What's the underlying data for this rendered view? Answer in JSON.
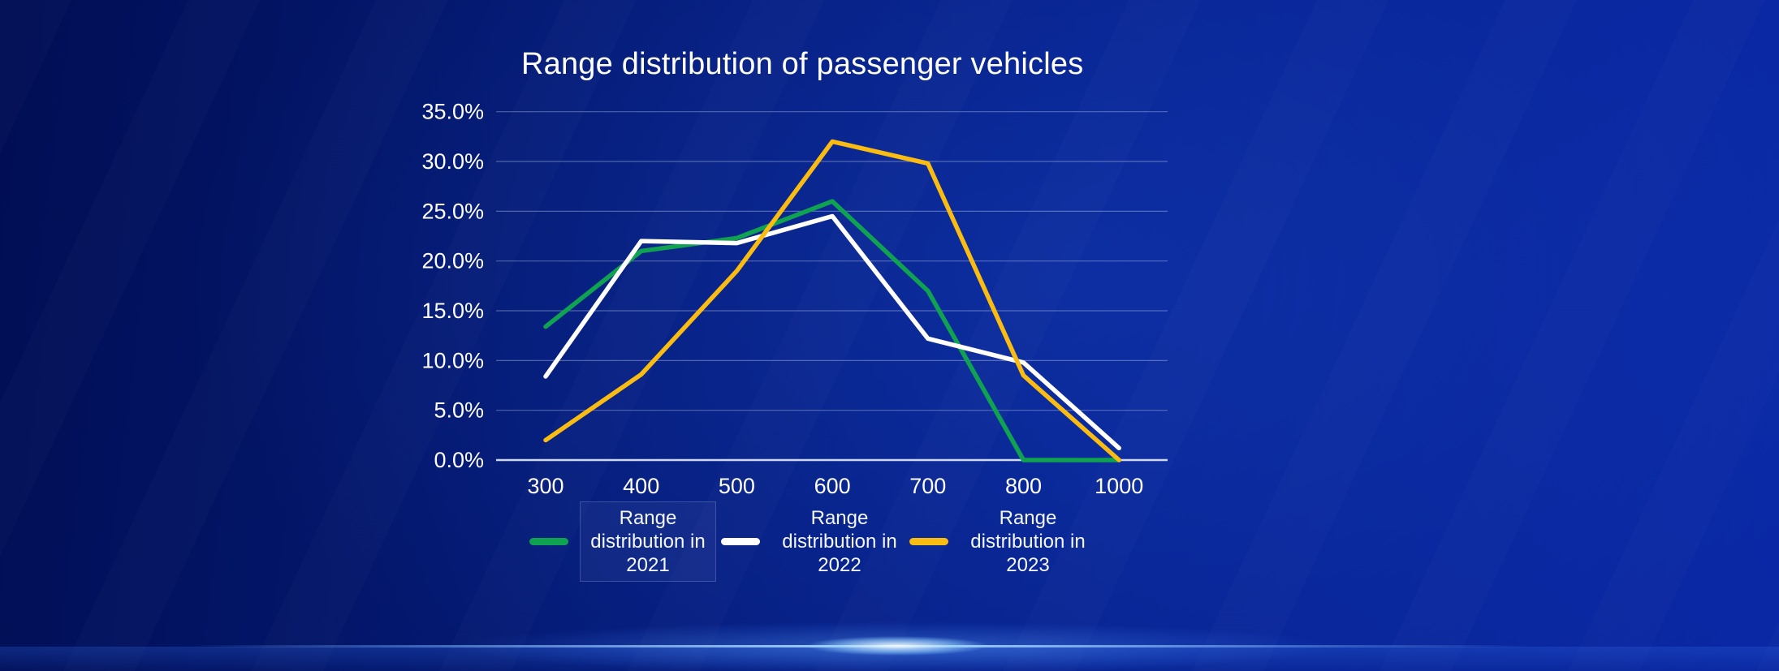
{
  "title": "Range distribution of passenger vehicles",
  "colors": {
    "background_dark": "#010e54",
    "background_bright": "#0a28a5",
    "gridline": "rgba(200,212,240,0.38)",
    "axis_line": "rgba(235,240,252,0.88)",
    "text": "#ffffff",
    "series_2021": "#0fa251",
    "series_2022": "#ffffff",
    "series_2023": "#fbbc12",
    "flare": "#9cd1ff"
  },
  "chart_data": {
    "type": "line",
    "title": "Range distribution of passenger vehicles",
    "categories": [
      "300",
      "400",
      "500",
      "600",
      "700",
      "800",
      "1000"
    ],
    "series": [
      {
        "name": "Range distribution in 2021",
        "color": "#0fa251",
        "values": [
          13.4,
          21.0,
          22.3,
          26.0,
          17.0,
          0.0,
          0.0
        ]
      },
      {
        "name": "Range distribution in 2022",
        "color": "#ffffff",
        "values": [
          8.4,
          22.0,
          21.8,
          24.5,
          12.2,
          9.8,
          1.2
        ]
      },
      {
        "name": "Range distribution in 2023",
        "color": "#fbbc12",
        "values": [
          2.0,
          8.6,
          19.0,
          32.0,
          29.8,
          8.5,
          0.0
        ]
      }
    ],
    "xlabel": "",
    "ylabel": "",
    "ylim": [
      0,
      35
    ],
    "ytick_step": 5,
    "ytick_labels": [
      "0.0%",
      "5.0%",
      "10.0%",
      "15.0%",
      "20.0%",
      "25.0%",
      "30.0%",
      "35.0%"
    ],
    "grid": true,
    "legend_position": "bottom"
  },
  "legend": {
    "items": [
      {
        "label": "Range distribution in 2021",
        "highlighted": true
      },
      {
        "label": "Range distribution in 2022",
        "highlighted": false
      },
      {
        "label": "Range distribution in 2023",
        "highlighted": false
      }
    ]
  }
}
